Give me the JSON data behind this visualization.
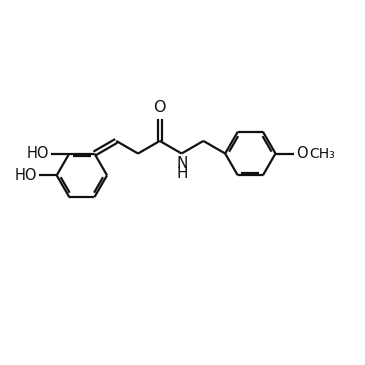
{
  "background_color": "#ffffff",
  "line_color": "#111111",
  "line_width": 1.6,
  "font_size": 10.5,
  "figsize": [
    3.65,
    3.65
  ],
  "dpi": 100,
  "xlim": [
    0,
    10
  ],
  "ylim": [
    0,
    10
  ]
}
